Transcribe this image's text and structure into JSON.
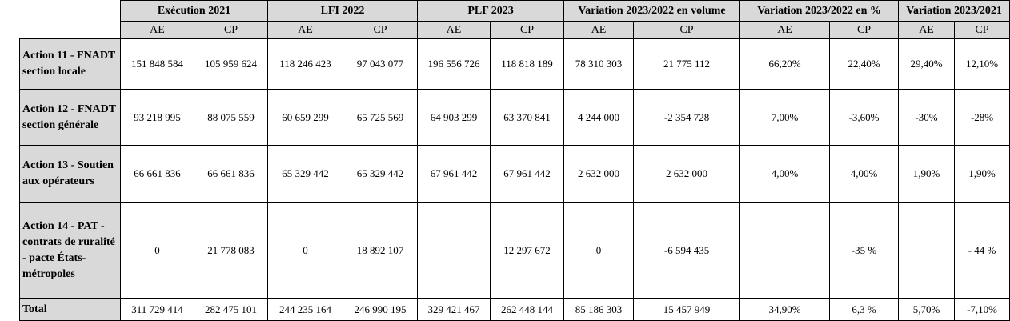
{
  "table": {
    "groups": [
      "Exécution 2021",
      "LFI 2022",
      "PLF 2023",
      "Variation 2023/2022 en volume",
      "Variation 2023/2022 en %",
      "Variation 2023/2021"
    ],
    "subheaders": [
      "AE",
      "CP",
      "AE",
      "CP",
      "AE",
      "CP",
      "AE",
      "CP",
      "AE",
      "CP",
      "AE",
      "CP"
    ],
    "rows": [
      {
        "label": "Action 11 - FNADT section locale",
        "values": [
          "151 848 584",
          "105 959 624",
          "118 246 423",
          "97 043 077",
          "196 556 726",
          "118 818 189",
          "78 310 303",
          "21 775 112",
          "66,20%",
          "22,40%",
          "29,40%",
          "12,10%"
        ]
      },
      {
        "label": "Action 12 - FNADT section générale",
        "values": [
          "93 218 995",
          "88 075 559",
          "60 659 299",
          "65 725 569",
          "64 903 299",
          "63 370 841",
          "4 244 000",
          "-2 354 728",
          "7,00%",
          "-3,60%",
          "-30%",
          "-28%"
        ]
      },
      {
        "label": "Action 13 - Soutien aux opérateurs",
        "values": [
          "66 661 836",
          "66 661 836",
          "65 329 442",
          "65 329 442",
          "67 961 442",
          "67 961 442",
          "2 632 000",
          "2 632 000",
          "4,00%",
          "4,00%",
          "1,90%",
          "1,90%"
        ]
      },
      {
        "label": "Action 14 - PAT - contrats de ruralité - pacte États-métropoles",
        "values": [
          "0",
          "21 778 083",
          "0",
          "18 892 107",
          null,
          "12 297 672",
          "0",
          "-6 594 435",
          null,
          "-35 %",
          null,
          "- 44 %"
        ]
      },
      {
        "label": "Total",
        "values": [
          "311 729 414",
          "282 475 101",
          "244 235 164",
          "246 990 195",
          "329 421 467",
          "262 448 144",
          "85 186 303",
          "15 457 949",
          "34,90%",
          "6,3 %",
          "5,70%",
          "-7,10%"
        ]
      }
    ]
  }
}
